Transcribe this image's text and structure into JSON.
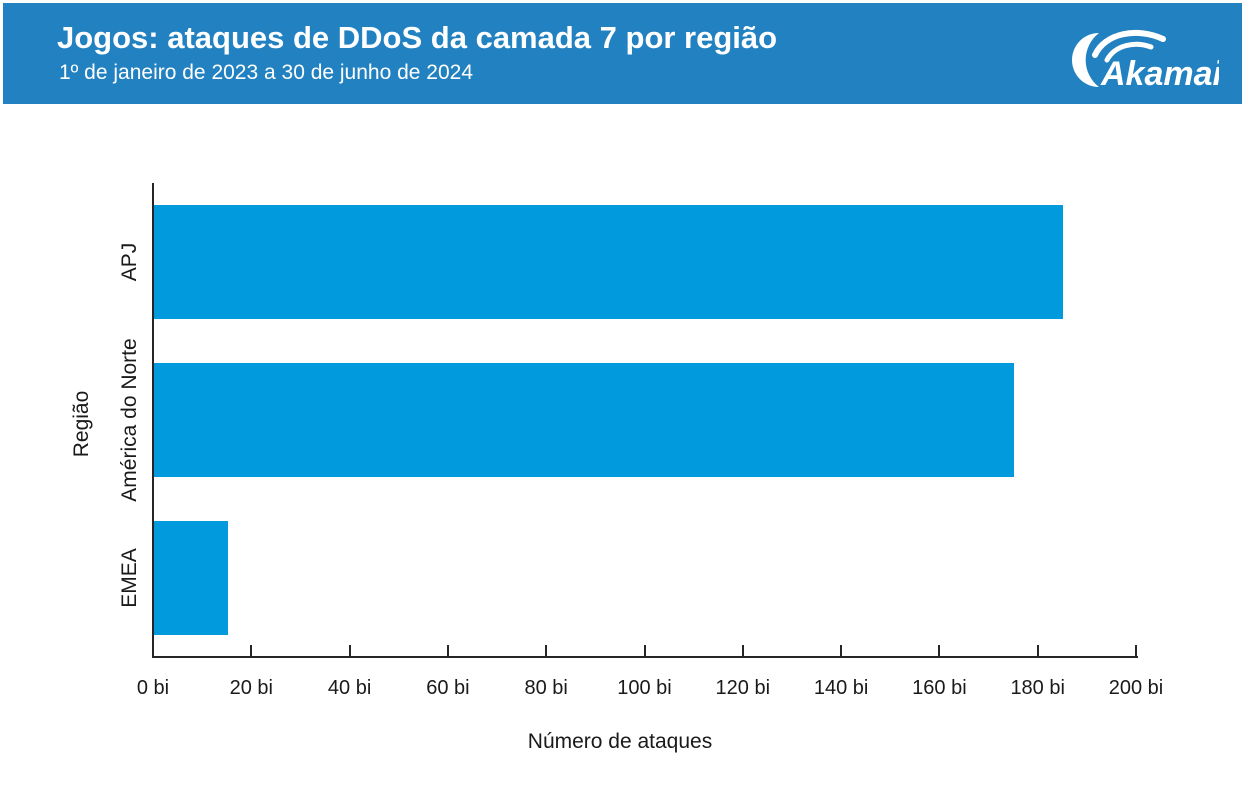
{
  "header": {
    "title": "Jogos: ataques de DDoS da camada 7 por região",
    "subtitle": "1º de janeiro de 2023 a 30 de junho de 2024",
    "logo": "Akamai",
    "bg_color": "#2281c0",
    "text_color": "#ffffff"
  },
  "chart_data": {
    "type": "bar",
    "orientation": "horizontal",
    "title": "Jogos: ataques de DDoS da camada 7 por região",
    "subtitle": "1º de janeiro de 2023 a 30 de junho de 2024",
    "categories": [
      "APJ",
      "América do Norte",
      "EMEA"
    ],
    "values": [
      185,
      175,
      15
    ],
    "value_unit": "bi",
    "xlabel": "Número de ataques",
    "ylabel": "Região",
    "xlim": [
      0,
      200
    ],
    "x_ticks": [
      {
        "value": 0,
        "label": "0 bi"
      },
      {
        "value": 20,
        "label": "20 bi"
      },
      {
        "value": 40,
        "label": "40 bi"
      },
      {
        "value": 60,
        "label": "60 bi"
      },
      {
        "value": 80,
        "label": "80 bi"
      },
      {
        "value": 100,
        "label": "100 bi"
      },
      {
        "value": 120,
        "label": "120 bi"
      },
      {
        "value": 140,
        "label": "140 bi"
      },
      {
        "value": 160,
        "label": "160 bi"
      },
      {
        "value": 180,
        "label": "180 bi"
      },
      {
        "value": 200,
        "label": "200 bi"
      }
    ],
    "bar_color": "#009add",
    "axis_color": "#262626",
    "text_color": "#1a1a1a",
    "background": "#ffffff",
    "grid": false,
    "legend": null
  }
}
